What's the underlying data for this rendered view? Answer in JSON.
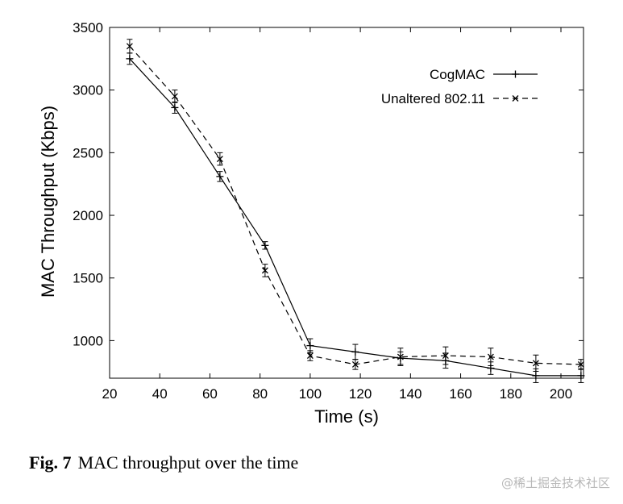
{
  "chart_data": {
    "type": "line",
    "xlabel": "Time (s)",
    "ylabel": "MAC Throughput (Kbps)",
    "xlim": [
      20,
      209
    ],
    "ylim": [
      700,
      3500
    ],
    "xticks": [
      20,
      40,
      60,
      80,
      100,
      120,
      140,
      160,
      180,
      200
    ],
    "yticks": [
      1000,
      1500,
      2000,
      2500,
      3000,
      3500
    ],
    "grid": false,
    "legend_position": "top-right",
    "series": [
      {
        "name": "CogMAC",
        "style": "solid",
        "marker": "plus",
        "x": [
          28,
          46,
          64,
          82,
          100,
          118,
          136,
          154,
          172,
          190,
          208
        ],
        "y": [
          3250,
          2860,
          2310,
          1760,
          960,
          910,
          860,
          840,
          780,
          720,
          720
        ],
        "err": [
          45,
          45,
          40,
          30,
          55,
          60,
          50,
          60,
          50,
          55,
          55
        ]
      },
      {
        "name": "Unaltered 802.11",
        "style": "dashed",
        "marker": "x",
        "x": [
          28,
          46,
          64,
          82,
          100,
          118,
          136,
          154,
          172,
          190,
          208
        ],
        "y": [
          3350,
          2950,
          2450,
          1560,
          880,
          810,
          870,
          880,
          870,
          820,
          810
        ],
        "err": [
          55,
          50,
          50,
          50,
          40,
          40,
          70,
          70,
          70,
          65,
          40
        ]
      }
    ]
  },
  "caption": {
    "label": "Fig. 7",
    "text": "MAC throughput over the time"
  },
  "watermark": "@稀土掘金技术社区"
}
